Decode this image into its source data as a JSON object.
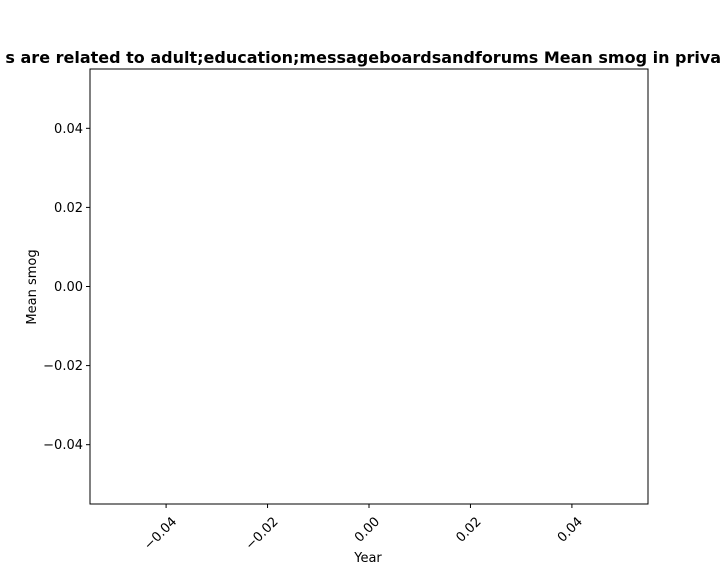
{
  "chart_data": {
    "type": "line",
    "title": "s are related to adult;education;messageboardsandforums Mean smog in privac",
    "xlabel": "Year",
    "ylabel": "Mean smog",
    "xlim": [
      -0.055,
      0.055
    ],
    "ylim": [
      -0.055,
      0.055
    ],
    "x_ticks": [
      "−0.04",
      "−0.02",
      "0.00",
      "0.02",
      "0.04"
    ],
    "x_tick_values": [
      -0.04,
      -0.02,
      0.0,
      0.02,
      0.04
    ],
    "y_ticks": [
      "0.04",
      "0.02",
      "0.00",
      "−0.02",
      "−0.04"
    ],
    "y_tick_values": [
      0.04,
      0.02,
      0.0,
      -0.02,
      -0.04
    ],
    "series": [],
    "grid": false,
    "legend": "none"
  }
}
